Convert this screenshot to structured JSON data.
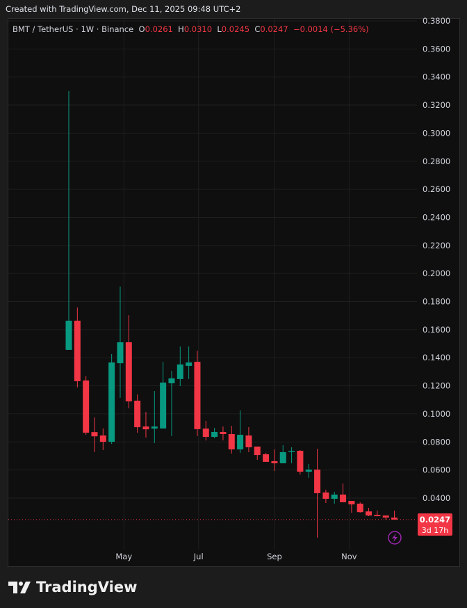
{
  "created_text": "Created with TradingView.com, Dec 11, 2025 09:48 UTC+2",
  "legend": {
    "symbol": "BMT / TetherUS · 1W · Binance",
    "o_label": "O",
    "o": "0.0261",
    "h_label": "H",
    "h": "0.0310",
    "l_label": "L",
    "l": "0.0245",
    "c_label": "C",
    "c": "0.0247",
    "change": "−0.0014 (−5.36%)"
  },
  "last_price": {
    "value": "0.0247",
    "countdown": "3d 17h"
  },
  "footer": {
    "brand": "TradingView"
  },
  "colors": {
    "up": "#089981",
    "down": "#f23645",
    "background": "#0f0f0f",
    "alert_icon": "#9c27b0"
  },
  "icons": {
    "alert": "lightning-icon"
  },
  "chart_data": {
    "type": "candlestick",
    "title": "BMT / TetherUS · 1W · Binance",
    "interval": "1W",
    "ylim": [
      0.02,
      0.38
    ],
    "y_ticks": [
      "0.0400",
      "0.0600",
      "0.0800",
      "0.1000",
      "0.1200",
      "0.1400",
      "0.1600",
      "0.1800",
      "0.2000",
      "0.2200",
      "0.2400",
      "0.2600",
      "0.2800",
      "0.3000",
      "0.3200",
      "0.3400",
      "0.3600",
      "0.3800"
    ],
    "x_ticks": [
      {
        "label": "May",
        "date": "2025-05-01"
      },
      {
        "label": "Jul",
        "date": "2025-07-01"
      },
      {
        "label": "Sep",
        "date": "2025-09-01"
      },
      {
        "label": "Nov",
        "date": "2025-11-01"
      }
    ],
    "grid": true,
    "candles": [
      {
        "date": "2025-03-17",
        "o": 0.1456,
        "h": 0.33,
        "l": 0.1456,
        "c": 0.1664
      },
      {
        "date": "2025-03-24",
        "o": 0.1664,
        "h": 0.1758,
        "l": 0.1188,
        "c": 0.1233
      },
      {
        "date": "2025-03-31",
        "o": 0.1238,
        "h": 0.1268,
        "l": 0.0851,
        "c": 0.0866
      },
      {
        "date": "2025-04-07",
        "o": 0.087,
        "h": 0.0975,
        "l": 0.0727,
        "c": 0.084
      },
      {
        "date": "2025-04-14",
        "o": 0.0846,
        "h": 0.0896,
        "l": 0.0742,
        "c": 0.0801
      },
      {
        "date": "2025-04-21",
        "o": 0.0801,
        "h": 0.1426,
        "l": 0.0786,
        "c": 0.1366
      },
      {
        "date": "2025-04-28",
        "o": 0.1361,
        "h": 0.1907,
        "l": 0.1114,
        "c": 0.151
      },
      {
        "date": "2025-05-05",
        "o": 0.151,
        "h": 0.1703,
        "l": 0.104,
        "c": 0.1089
      },
      {
        "date": "2025-05-12",
        "o": 0.1094,
        "h": 0.1138,
        "l": 0.0866,
        "c": 0.0905
      },
      {
        "date": "2025-05-19",
        "o": 0.091,
        "h": 0.1014,
        "l": 0.0831,
        "c": 0.089
      },
      {
        "date": "2025-05-26",
        "o": 0.0895,
        "h": 0.1163,
        "l": 0.0792,
        "c": 0.091
      },
      {
        "date": "2025-06-02",
        "o": 0.0896,
        "h": 0.1371,
        "l": 0.0895,
        "c": 0.1223
      },
      {
        "date": "2025-06-09",
        "o": 0.1218,
        "h": 0.1307,
        "l": 0.0841,
        "c": 0.1253
      },
      {
        "date": "2025-06-16",
        "o": 0.1248,
        "h": 0.148,
        "l": 0.1198,
        "c": 0.1352
      },
      {
        "date": "2025-06-23",
        "o": 0.1342,
        "h": 0.148,
        "l": 0.1248,
        "c": 0.1366
      },
      {
        "date": "2025-06-30",
        "o": 0.1371,
        "h": 0.145,
        "l": 0.0841,
        "c": 0.0891
      },
      {
        "date": "2025-07-07",
        "o": 0.0895,
        "h": 0.095,
        "l": 0.081,
        "c": 0.0836
      },
      {
        "date": "2025-07-14",
        "o": 0.0836,
        "h": 0.09,
        "l": 0.0826,
        "c": 0.0871
      },
      {
        "date": "2025-07-21",
        "o": 0.0871,
        "h": 0.091,
        "l": 0.0811,
        "c": 0.0856
      },
      {
        "date": "2025-07-28",
        "o": 0.0856,
        "h": 0.0915,
        "l": 0.0717,
        "c": 0.0747
      },
      {
        "date": "2025-08-04",
        "o": 0.0747,
        "h": 0.1025,
        "l": 0.0722,
        "c": 0.0851
      },
      {
        "date": "2025-08-11",
        "o": 0.0846,
        "h": 0.0906,
        "l": 0.0727,
        "c": 0.0762
      },
      {
        "date": "2025-08-18",
        "o": 0.0767,
        "h": 0.0767,
        "l": 0.0673,
        "c": 0.0707
      },
      {
        "date": "2025-08-25",
        "o": 0.0712,
        "h": 0.0722,
        "l": 0.0658,
        "c": 0.0658
      },
      {
        "date": "2025-09-01",
        "o": 0.0663,
        "h": 0.0747,
        "l": 0.0593,
        "c": 0.0648
      },
      {
        "date": "2025-09-08",
        "o": 0.0648,
        "h": 0.0777,
        "l": 0.0648,
        "c": 0.0727
      },
      {
        "date": "2025-09-15",
        "o": 0.0732,
        "h": 0.0762,
        "l": 0.0648,
        "c": 0.0737
      },
      {
        "date": "2025-09-22",
        "o": 0.0737,
        "h": 0.0742,
        "l": 0.0568,
        "c": 0.0588
      },
      {
        "date": "2025-09-29",
        "o": 0.0588,
        "h": 0.0643,
        "l": 0.0544,
        "c": 0.0603
      },
      {
        "date": "2025-10-06",
        "o": 0.0603,
        "h": 0.0752,
        "l": 0.0118,
        "c": 0.0435
      },
      {
        "date": "2025-10-13",
        "o": 0.044,
        "h": 0.046,
        "l": 0.0365,
        "c": 0.0395
      },
      {
        "date": "2025-10-20",
        "o": 0.0395,
        "h": 0.0445,
        "l": 0.036,
        "c": 0.0425
      },
      {
        "date": "2025-10-27",
        "o": 0.0425,
        "h": 0.0504,
        "l": 0.037,
        "c": 0.037
      },
      {
        "date": "2025-11-03",
        "o": 0.038,
        "h": 0.038,
        "l": 0.0296,
        "c": 0.0355
      },
      {
        "date": "2025-11-10",
        "o": 0.036,
        "h": 0.037,
        "l": 0.0296,
        "c": 0.03
      },
      {
        "date": "2025-11-17",
        "o": 0.0305,
        "h": 0.033,
        "l": 0.0271,
        "c": 0.0276
      },
      {
        "date": "2025-11-24",
        "o": 0.028,
        "h": 0.031,
        "l": 0.027,
        "c": 0.0271
      },
      {
        "date": "2025-12-01",
        "o": 0.0276,
        "h": 0.0276,
        "l": 0.0247,
        "c": 0.0261
      },
      {
        "date": "2025-12-08",
        "o": 0.0261,
        "h": 0.031,
        "l": 0.0245,
        "c": 0.0247
      }
    ]
  }
}
